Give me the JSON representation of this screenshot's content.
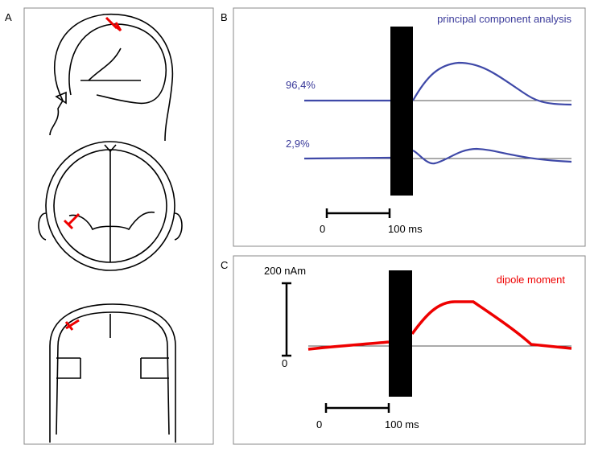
{
  "panels": [
    {
      "label": "A"
    },
    {
      "label": "B",
      "title": "principal component analysis",
      "components": [
        "96,4%",
        "2,9%"
      ],
      "scale": [
        "0",
        "100 ms"
      ]
    },
    {
      "label": "C",
      "title": "dipole moment",
      "amplitude": [
        "200 nAm",
        "0"
      ],
      "scale": [
        "0",
        "100 ms"
      ]
    }
  ]
}
